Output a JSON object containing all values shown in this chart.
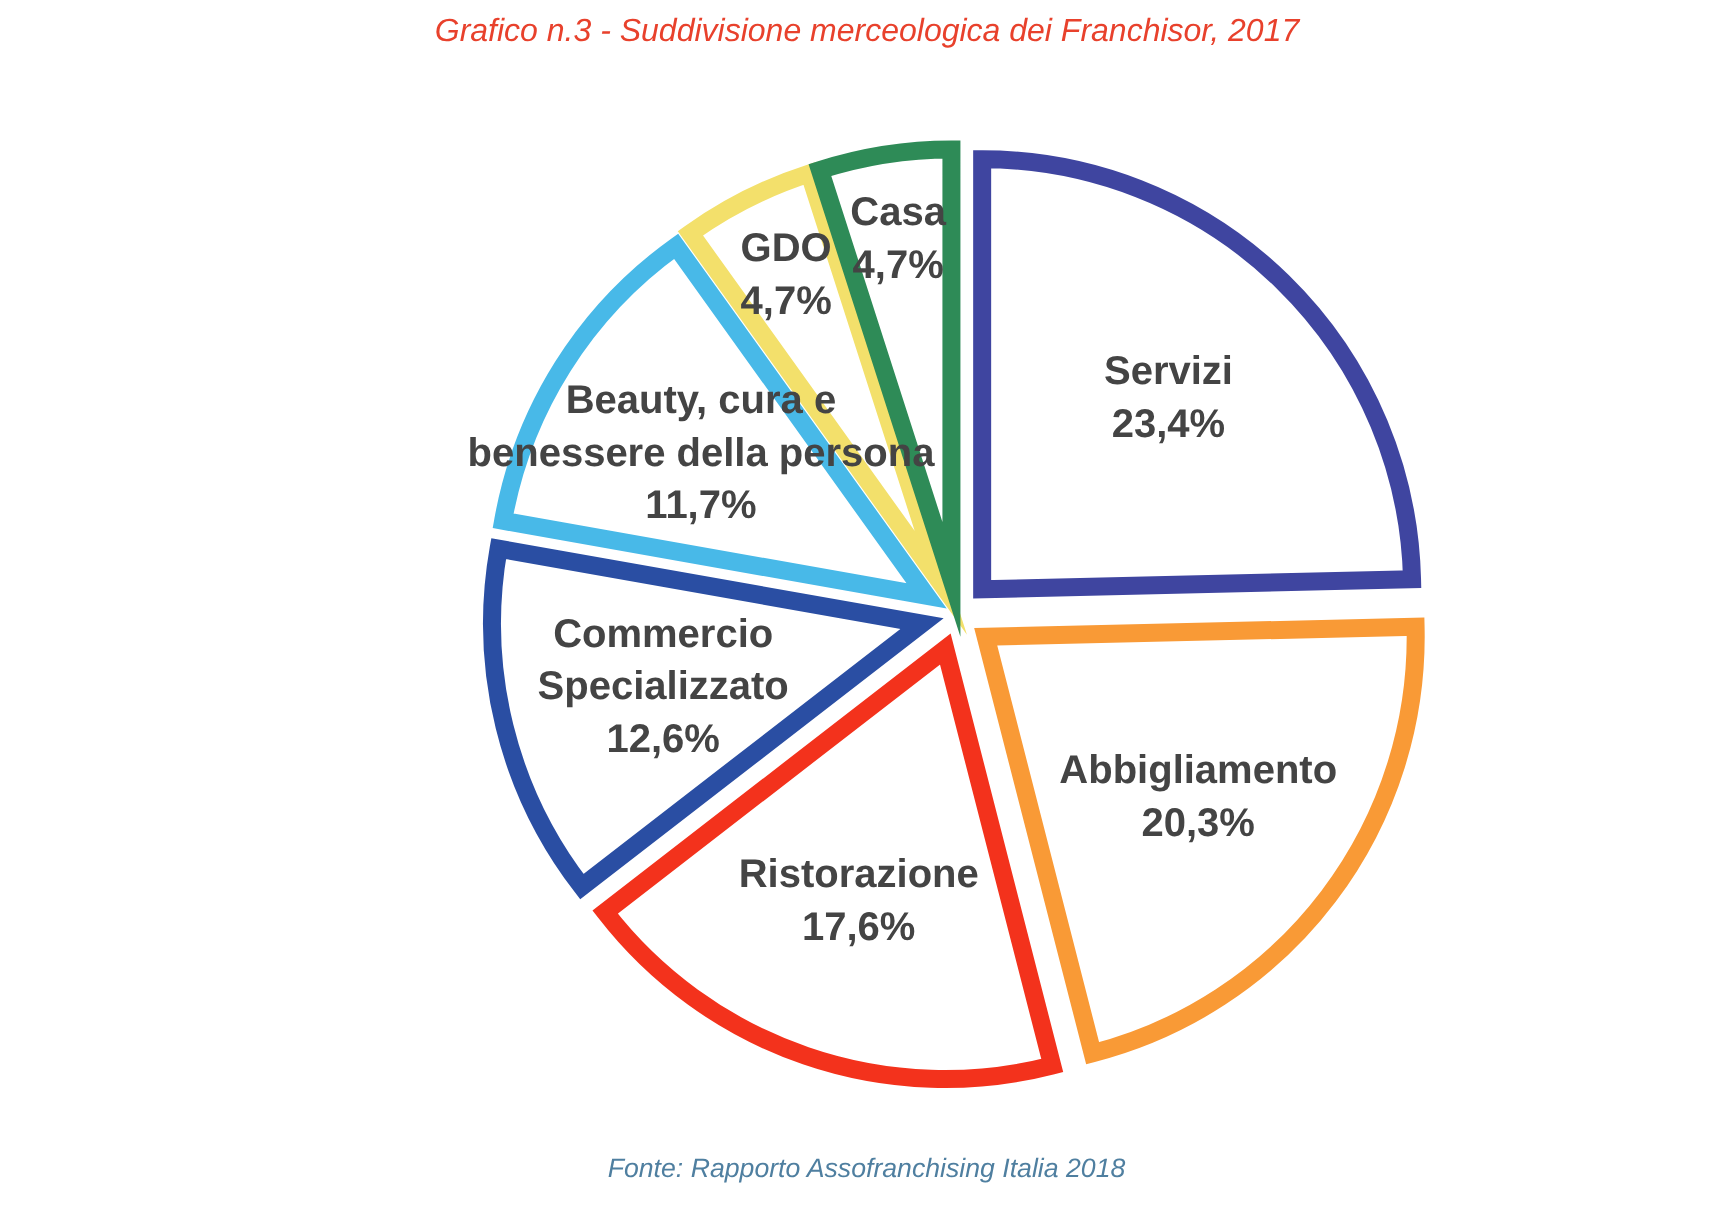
{
  "chart_data": {
    "type": "pie",
    "title": "Grafico n.3 - Suddivisione merceologica dei Franchisor, 2017",
    "categories": [
      "Servizi",
      "Abbigliamento",
      "Ristorazione",
      "Commercio\nSpecializzato",
      "Beauty, cura e\nbenessere della persona",
      "GDO",
      "Casa"
    ],
    "values": [
      23.4,
      20.3,
      17.6,
      12.6,
      11.7,
      4.7,
      4.7
    ],
    "value_labels": [
      "23,4%",
      "20,3%",
      "17,6%",
      "12,6%",
      "11,7%",
      "4,7%",
      "4,7%"
    ],
    "colors": [
      "#3f45a0",
      "#f99a36",
      "#f3321c",
      "#2a4ea3",
      "#48b9e8",
      "#f3e06b",
      "#2e8b57"
    ],
    "annotations": [
      "Fonte: Rapporto Assofranchising Italia 2018"
    ]
  }
}
